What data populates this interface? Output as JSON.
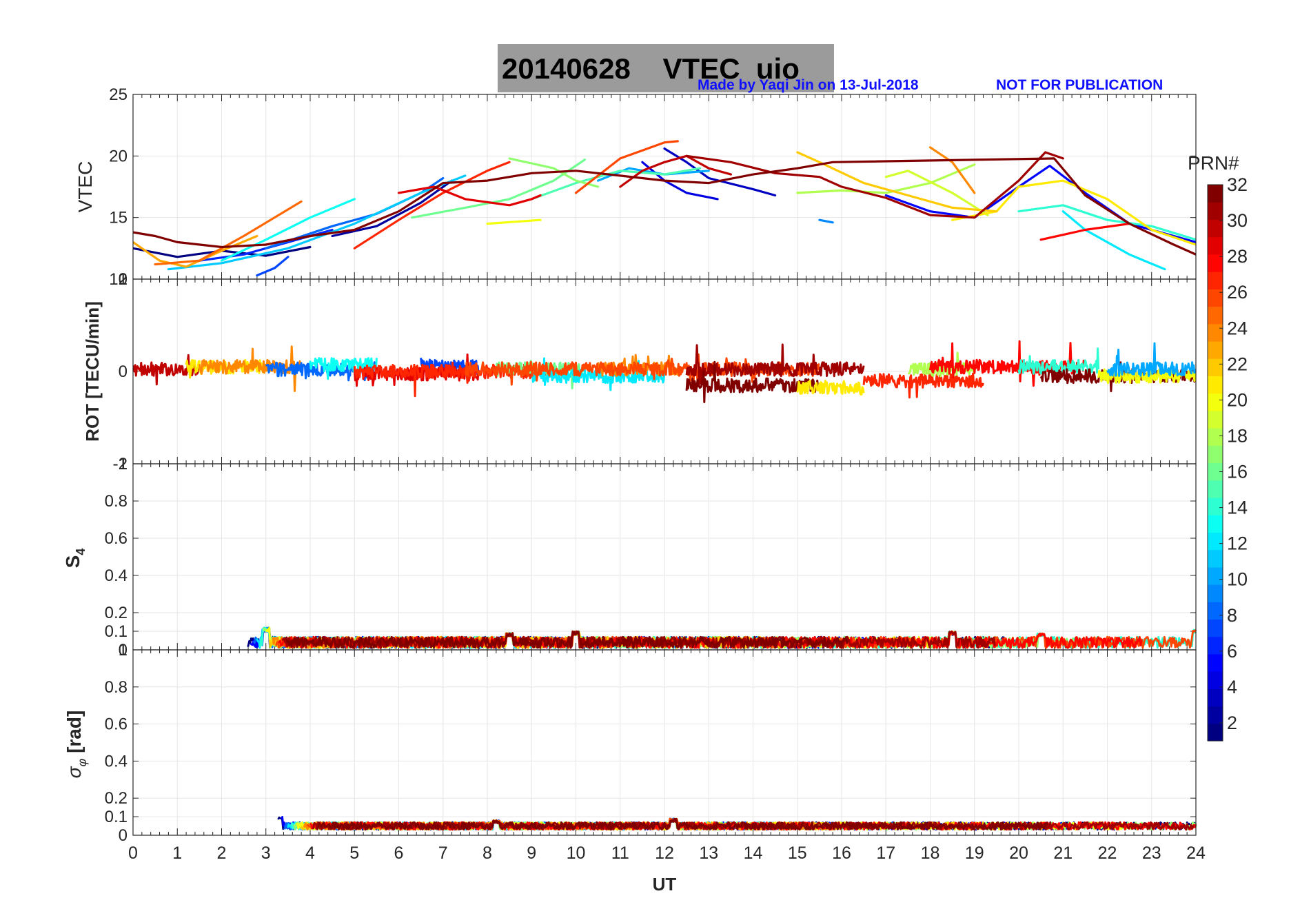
{
  "header": {
    "title": "20140628    VTEC  uio",
    "credit": "Made by Yaqi Jin on 13-Jul-2018",
    "notice": "NOT FOR PUBLICATION"
  },
  "colors": {
    "title_box": "#9b9b9b",
    "credit_text": "#1010ff",
    "grid": "#e6e6e6",
    "axis": "#262626"
  },
  "chart_data": [
    {
      "type": "line",
      "panel": "vtec",
      "ylabel": "VTEC",
      "xlim": [
        0,
        24
      ],
      "ylim": [
        10,
        25
      ],
      "yticks": [
        10,
        15,
        20,
        25
      ],
      "yticklabels": [
        "10",
        "15",
        "20",
        "25"
      ],
      "series": [
        {
          "prn": 1,
          "x": [
            0,
            1,
            2,
            3,
            4
          ],
          "y": [
            12.5,
            11.8,
            12.3,
            11.9,
            12.6
          ]
        },
        {
          "prn": 2,
          "x": [
            4.5,
            5.5,
            6.5,
            7.2
          ],
          "y": [
            13.5,
            14.3,
            16.2,
            18.0
          ]
        },
        {
          "prn": 3,
          "x": [
            12.0,
            12.5,
            13.0,
            14.0,
            14.5
          ],
          "y": [
            20.6,
            19.5,
            18.2,
            17.3,
            16.8
          ]
        },
        {
          "prn": 4,
          "x": [
            11.5,
            12.0,
            12.5,
            13.2
          ],
          "y": [
            19.5,
            18.0,
            17.0,
            16.5
          ]
        },
        {
          "prn": 5,
          "x": [
            17.0,
            18.0,
            19.0,
            20.0,
            20.7,
            21.5,
            22.5,
            24.0
          ],
          "y": [
            16.8,
            15.5,
            15.0,
            17.5,
            19.2,
            17.0,
            14.5,
            13.0
          ]
        },
        {
          "prn": 6,
          "x": [
            1.5,
            2.5,
            3.5,
            4.5
          ],
          "y": [
            11.5,
            12.0,
            13.0,
            14.0
          ]
        },
        {
          "prn": 7,
          "x": [
            2.8,
            3.2,
            3.5
          ],
          "y": [
            10.3,
            10.9,
            11.8
          ]
        },
        {
          "prn": 8,
          "x": [
            3.0,
            4.5,
            5.5,
            6.5,
            7.0
          ],
          "y": [
            12.5,
            14.3,
            15.3,
            17.0,
            18.2
          ]
        },
        {
          "prn": 9,
          "x": [
            15.5,
            15.8
          ],
          "y": [
            14.8,
            14.6
          ]
        },
        {
          "prn": 10,
          "x": [
            10.5,
            11.2,
            12.0,
            13.0
          ],
          "y": [
            18.0,
            19.0,
            18.5,
            18.8
          ]
        },
        {
          "prn": 11,
          "x": [
            0.8,
            2.0,
            3.5,
            5.0,
            6.5,
            7.5
          ],
          "y": [
            10.8,
            11.3,
            12.5,
            14.5,
            17.0,
            18.4
          ]
        },
        {
          "prn": 12,
          "x": [
            21.0,
            21.5,
            22.5,
            23.3
          ],
          "y": [
            15.5,
            14.0,
            12.0,
            10.8
          ]
        },
        {
          "prn": 13,
          "x": [
            2.0,
            3.0,
            4.0,
            5.0
          ],
          "y": [
            11.5,
            13.2,
            15.0,
            16.5
          ]
        },
        {
          "prn": 14,
          "x": [
            20.0,
            21.0,
            22.0,
            23.0,
            24.0
          ],
          "y": [
            15.5,
            16.0,
            14.8,
            14.3,
            13.2
          ]
        },
        {
          "prn": 15,
          "x": [
            9.0,
            10.0,
            11.0,
            12.0,
            12.8
          ],
          "y": [
            16.5,
            17.8,
            18.8,
            18.5,
            19.0
          ]
        },
        {
          "prn": 16,
          "x": [
            6.3,
            7.5,
            8.5,
            9.5,
            10.2
          ],
          "y": [
            15.0,
            15.8,
            16.5,
            18.0,
            19.7
          ]
        },
        {
          "prn": 17,
          "x": [
            8.5,
            9.5,
            10.0,
            10.5
          ],
          "y": [
            19.8,
            19.0,
            18.0,
            17.5
          ]
        },
        {
          "prn": 18,
          "x": [
            15.0,
            16.0,
            17.0,
            18.0,
            19.0
          ],
          "y": [
            17.0,
            17.2,
            17.0,
            17.8,
            19.3
          ]
        },
        {
          "prn": 19,
          "x": [
            17.0,
            17.5,
            18.5,
            19.3
          ],
          "y": [
            18.3,
            18.8,
            17.0,
            15.2
          ]
        },
        {
          "prn": 20,
          "x": [
            8.0,
            9.2
          ],
          "y": [
            14.5,
            14.8
          ]
        },
        {
          "prn": 21,
          "x": [
            18.5,
            19.5,
            20.0,
            21.0,
            22.0,
            23.0,
            24.0
          ],
          "y": [
            14.8,
            15.5,
            17.5,
            18.0,
            16.5,
            14.0,
            12.8
          ]
        },
        {
          "prn": 22,
          "x": [
            15.0,
            15.5,
            16.5,
            17.5,
            18.5,
            19.5
          ],
          "y": [
            20.3,
            19.5,
            17.8,
            16.8,
            15.8,
            15.5
          ]
        },
        {
          "prn": 23,
          "x": [
            0,
            0.6,
            1.2,
            2.0,
            2.8
          ],
          "y": [
            13.0,
            11.5,
            11.0,
            12.3,
            13.5
          ]
        },
        {
          "prn": 24,
          "x": [
            18.0,
            18.5,
            19.0
          ],
          "y": [
            20.7,
            19.5,
            17.0
          ]
        },
        {
          "prn": 25,
          "x": [
            0.5,
            1.5,
            2.5,
            3.8
          ],
          "y": [
            11.2,
            11.5,
            13.5,
            16.3
          ]
        },
        {
          "prn": 26,
          "x": [
            10.0,
            11.0,
            12.0,
            12.3
          ],
          "y": [
            17.0,
            19.8,
            21.1,
            21.2
          ]
        },
        {
          "prn": 27,
          "x": [
            5.0,
            6.0,
            7.0,
            8.0,
            8.5
          ],
          "y": [
            12.5,
            14.8,
            17.0,
            18.8,
            19.5
          ]
        },
        {
          "prn": 28,
          "x": [
            20.5,
            21.0,
            21.5,
            22.5
          ],
          "y": [
            13.2,
            13.6,
            14.0,
            14.5
          ]
        },
        {
          "prn": 29,
          "x": [
            6.0,
            6.8,
            7.5,
            8.5,
            9.0,
            9.2
          ],
          "y": [
            17.0,
            17.5,
            16.5,
            16.0,
            16.5,
            16.8
          ]
        },
        {
          "prn": 30,
          "x": [
            11.0,
            11.5,
            12.0,
            12.5,
            13.0,
            13.5
          ],
          "y": [
            17.5,
            18.8,
            19.5,
            20.0,
            19.0,
            18.5
          ]
        },
        {
          "prn": 31,
          "x": [
            12.5,
            13.5,
            14.5,
            15.5,
            16.0,
            17.0,
            18.0,
            19.0,
            20.0,
            20.6,
            21.0
          ],
          "y": [
            20.0,
            19.5,
            18.6,
            18.3,
            17.5,
            16.6,
            15.2,
            15.0,
            18.0,
            20.3,
            19.8
          ]
        },
        {
          "prn": 32,
          "x": [
            0,
            0.5,
            1.0,
            2.0,
            3.0,
            4.0,
            5.0,
            6.0,
            7.0,
            8.0,
            9.0,
            10.0,
            11.0,
            12.0,
            13.0,
            14.0,
            15.0,
            15.8,
            20.8,
            21.5,
            22.5,
            23.5,
            24.0
          ],
          "y": [
            13.8,
            13.5,
            13.0,
            12.6,
            12.8,
            13.5,
            14.0,
            15.5,
            17.8,
            18.0,
            18.6,
            18.8,
            18.4,
            18.0,
            17.8,
            18.5,
            19.0,
            19.5,
            19.8,
            16.8,
            14.5,
            12.8,
            12.0
          ]
        }
      ]
    },
    {
      "type": "scatter",
      "panel": "rot",
      "ylabel": "ROT [TECU/min]",
      "xlim": [
        0,
        24
      ],
      "ylim": [
        -2,
        2
      ],
      "yticks": [
        -2,
        0,
        2
      ],
      "yticklabels": [
        "-2",
        "0",
        "2"
      ],
      "overlap_ticklabels": [
        "-1",
        "1"
      ],
      "noise_amplitude": 0.15,
      "segments": [
        {
          "prn": 30,
          "x": [
            0,
            1.5
          ],
          "level": 0.05
        },
        {
          "prn": 21,
          "x": [
            1.2,
            3.0
          ],
          "level": 0.1
        },
        {
          "prn": 24,
          "x": [
            1.5,
            3.8
          ],
          "level": 0.1
        },
        {
          "prn": 8,
          "x": [
            3.0,
            5.5
          ],
          "level": 0.05
        },
        {
          "prn": 13,
          "x": [
            4.0,
            5.5
          ],
          "level": 0.15
        },
        {
          "prn": 7,
          "x": [
            6.5,
            7.8
          ],
          "level": 0.1
        },
        {
          "prn": 29,
          "x": [
            5.0,
            7.8
          ],
          "level": -0.05
        },
        {
          "prn": 27,
          "x": [
            5.0,
            9.5
          ],
          "level": 0.0
        },
        {
          "prn": 16,
          "x": [
            8.2,
            10.2
          ],
          "level": 0.05
        },
        {
          "prn": 12,
          "x": [
            9.0,
            12.0
          ],
          "level": -0.1
        },
        {
          "prn": 24,
          "x": [
            10.5,
            12.3
          ],
          "level": 0.05
        },
        {
          "prn": 26,
          "x": [
            7.5,
            15.5
          ],
          "level": 0.05
        },
        {
          "prn": 31,
          "x": [
            12.5,
            16.5
          ],
          "level": 0.05
        },
        {
          "prn": 32,
          "x": [
            12.5,
            15.5
          ],
          "level": -0.3
        },
        {
          "prn": 21,
          "x": [
            15.0,
            16.5
          ],
          "level": -0.35
        },
        {
          "prn": 27,
          "x": [
            16.5,
            19.2
          ],
          "level": -0.2
        },
        {
          "prn": 18,
          "x": [
            17.5,
            19.0
          ],
          "level": 0.05
        },
        {
          "prn": 28,
          "x": [
            18.0,
            21.5
          ],
          "level": 0.1
        },
        {
          "prn": 14,
          "x": [
            20.0,
            21.8
          ],
          "level": 0.1
        },
        {
          "prn": 32,
          "x": [
            20.5,
            24.0
          ],
          "level": -0.1
        },
        {
          "prn": 20,
          "x": [
            21.8,
            24.0
          ],
          "level": -0.1
        },
        {
          "prn": 10,
          "x": [
            22.0,
            24.0
          ],
          "level": 0.05
        }
      ]
    },
    {
      "type": "scatter",
      "panel": "s4",
      "ylabel": "S4",
      "xlim": [
        0,
        24
      ],
      "ylim": [
        0,
        1
      ],
      "yticks": [
        0,
        0.1,
        0.2,
        0.4,
        0.6,
        0.8,
        1
      ],
      "yticklabels": [
        "0",
        "0.1",
        "0.2",
        "0.4",
        "0.6",
        "0.8",
        "1"
      ],
      "baseline": 0.04,
      "noise_amplitude": 0.03,
      "spikes": [
        {
          "x": 3.0,
          "y": 0.12
        },
        {
          "x": 8.5,
          "y": 0.09
        },
        {
          "x": 10.0,
          "y": 0.1
        },
        {
          "x": 18.5,
          "y": 0.1
        },
        {
          "x": 20.5,
          "y": 0.09
        },
        {
          "x": 24.0,
          "y": 0.11
        }
      ]
    },
    {
      "type": "scatter",
      "panel": "sigma_phi",
      "ylabel": "σφ [rad]",
      "xlabel": "UT",
      "xlim": [
        0,
        24
      ],
      "ylim": [
        0,
        1
      ],
      "yticks": [
        0,
        0.1,
        0.2,
        0.4,
        0.6,
        0.8,
        1
      ],
      "yticklabels": [
        "0",
        "0.1",
        "0.2",
        "0.4",
        "0.6",
        "0.8",
        "1"
      ],
      "xticks": [
        0,
        1,
        2,
        3,
        4,
        5,
        6,
        7,
        8,
        9,
        10,
        11,
        12,
        13,
        14,
        15,
        16,
        17,
        18,
        19,
        20,
        21,
        22,
        23,
        24
      ],
      "xticklabels": [
        "0",
        "1",
        "2",
        "3",
        "4",
        "5",
        "6",
        "7",
        "8",
        "9",
        "10",
        "11",
        "12",
        "13",
        "14",
        "15",
        "16",
        "17",
        "18",
        "19",
        "20",
        "21",
        "22",
        "23",
        "24"
      ],
      "baseline": 0.05,
      "noise_amplitude": 0.02,
      "spikes": [
        {
          "x": 3.3,
          "y": 0.1
        },
        {
          "x": 8.2,
          "y": 0.08
        },
        {
          "x": 12.2,
          "y": 0.09
        }
      ]
    },
    {
      "type": "colorbar",
      "label": "PRN#",
      "clim": [
        1,
        32
      ],
      "ticks": [
        2,
        4,
        6,
        8,
        10,
        12,
        14,
        16,
        18,
        20,
        22,
        24,
        26,
        28,
        30,
        32
      ],
      "ticklabels": [
        "2",
        "4",
        "6",
        "8",
        "10",
        "12",
        "14",
        "16",
        "18",
        "20",
        "22",
        "24",
        "26",
        "28",
        "30",
        "32"
      ],
      "colormap": "jet"
    }
  ]
}
